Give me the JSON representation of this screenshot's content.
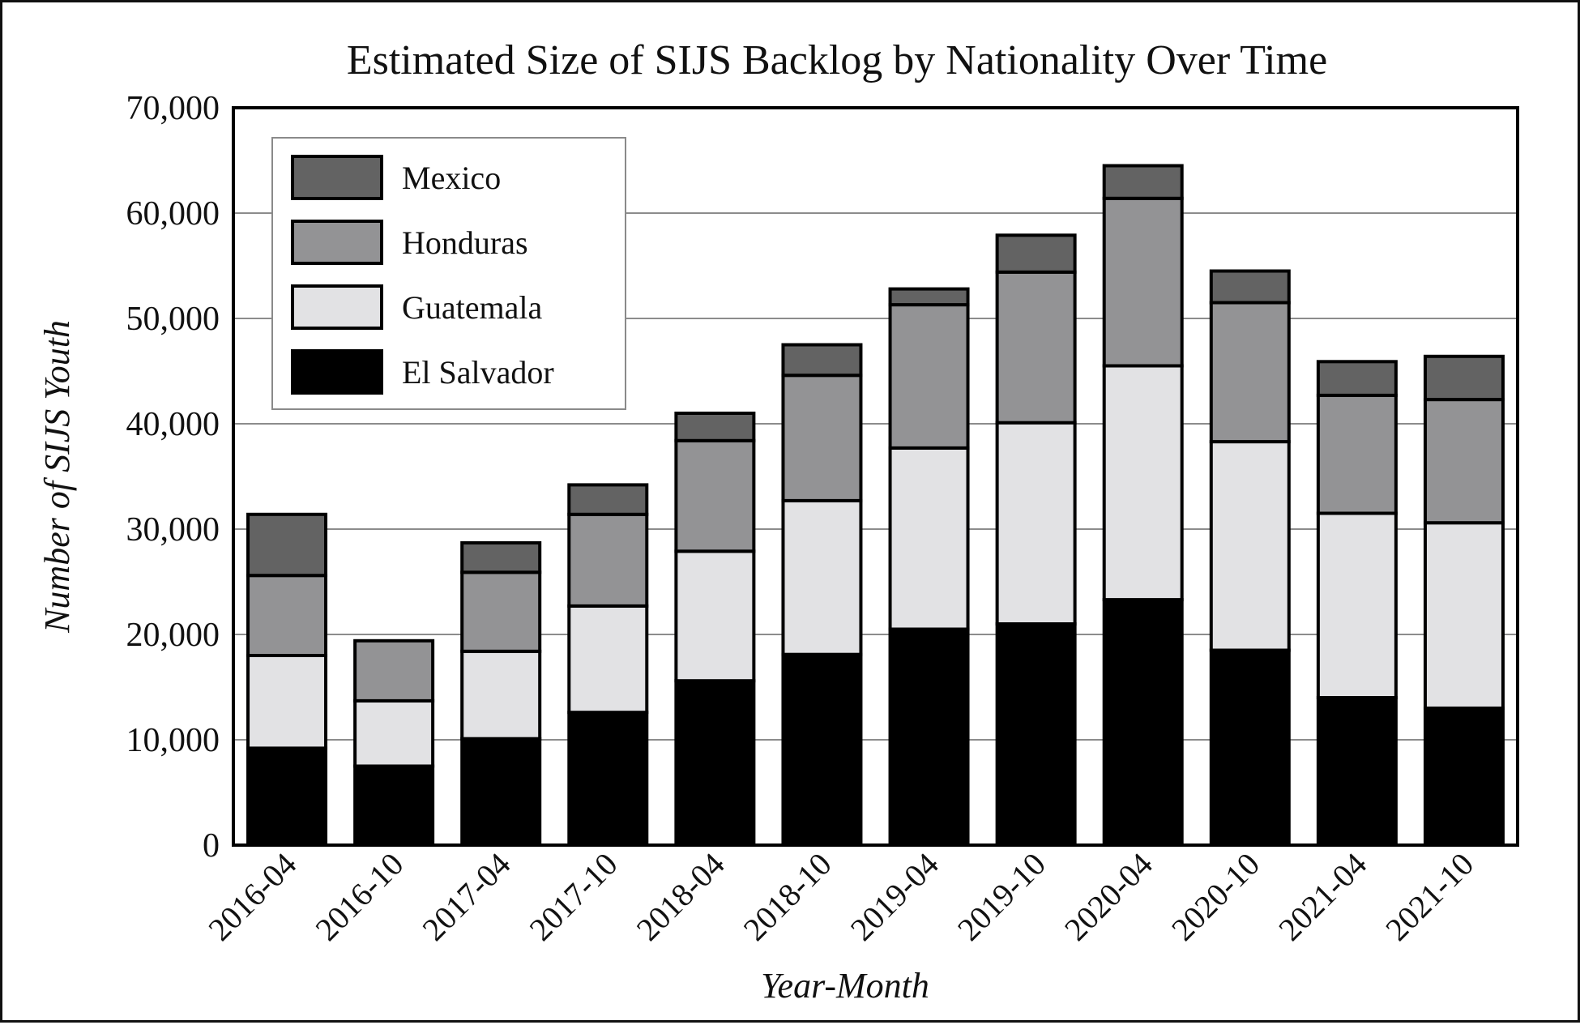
{
  "chart_data": {
    "type": "bar",
    "stacked": true,
    "title": "Estimated Size of SIJS Backlog by Nationality Over Time",
    "xlabel": "Year-Month",
    "ylabel": "Number of SIJS Youth",
    "ylim": [
      0,
      70000
    ],
    "yticks": [
      0,
      10000,
      20000,
      30000,
      40000,
      50000,
      60000,
      70000
    ],
    "ytick_labels": [
      "0",
      "10,000",
      "20,000",
      "30,000",
      "40,000",
      "50,000",
      "60,000",
      "70,000"
    ],
    "grid": "horizontal",
    "legend_position": "top-left",
    "categories": [
      "2016-04",
      "2016-10",
      "2017-04",
      "2017-10",
      "2018-04",
      "2018-10",
      "2019-04",
      "2019-10",
      "2020-04",
      "2020-10",
      "2021-04",
      "2021-10"
    ],
    "series": [
      {
        "name": "El Salvador",
        "color": "#000000",
        "values": [
          9200,
          7500,
          10100,
          12600,
          15600,
          18100,
          20500,
          21000,
          23300,
          18500,
          14000,
          13000
        ]
      },
      {
        "name": "Guatemala",
        "color": "#e2e2e4",
        "values": [
          8800,
          6200,
          8300,
          10100,
          12300,
          14600,
          17200,
          19100,
          22200,
          19800,
          17500,
          17600
        ]
      },
      {
        "name": "Honduras",
        "color": "#939395",
        "values": [
          7600,
          5700,
          7500,
          8700,
          10500,
          11900,
          13600,
          14300,
          15900,
          13200,
          11200,
          11700
        ]
      },
      {
        "name": "Mexico",
        "color": "#636363",
        "values": [
          5800,
          0,
          2800,
          2800,
          2600,
          2900,
          1500,
          3500,
          3100,
          3000,
          3200,
          4100
        ]
      }
    ]
  }
}
